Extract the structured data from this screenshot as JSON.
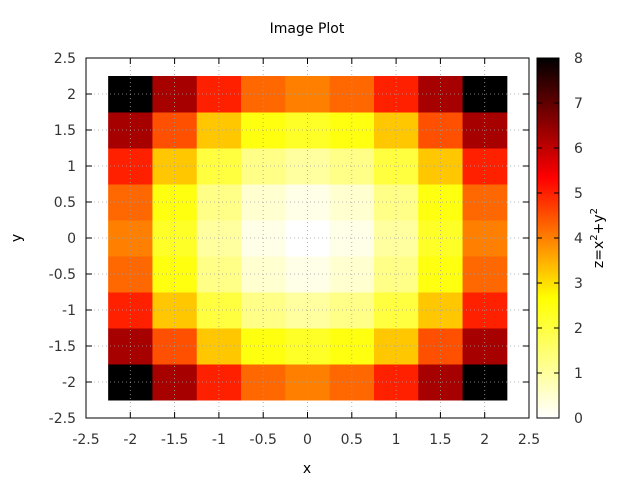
{
  "chart_data": {
    "type": "heatmap",
    "title": "Image Plot",
    "xlabel": "x",
    "ylabel": "y",
    "colorbar_label": "z=x²+y²",
    "colorbar_label_base": "z=x",
    "colorbar_label_mid": "+y",
    "colorbar_label_exp": "2",
    "xlim": [
      -2.5,
      2.5
    ],
    "ylim": [
      -2.5,
      2.5
    ],
    "zlim": [
      0,
      8
    ],
    "colormap": "hot",
    "x": [
      -2,
      -1.5,
      -1,
      -0.5,
      0,
      0.5,
      1,
      1.5,
      2
    ],
    "y": [
      -2,
      -1.5,
      -1,
      -0.5,
      0,
      0.5,
      1,
      1.5,
      2
    ],
    "z_formula": "x^2+y^2",
    "xticks": [
      "-2.5",
      "-2",
      "-1.5",
      "-1",
      "-0.5",
      "0",
      "0.5",
      "1",
      "1.5",
      "2",
      "2.5"
    ],
    "yticks": [
      "-2.5",
      "-2",
      "-1.5",
      "-1",
      "-0.5",
      "0",
      "0.5",
      "1",
      "1.5",
      "2",
      "2.5"
    ],
    "colorbar_ticks": [
      "0",
      "1",
      "2",
      "3",
      "4",
      "5",
      "6",
      "7",
      "8"
    ],
    "grid": true
  }
}
